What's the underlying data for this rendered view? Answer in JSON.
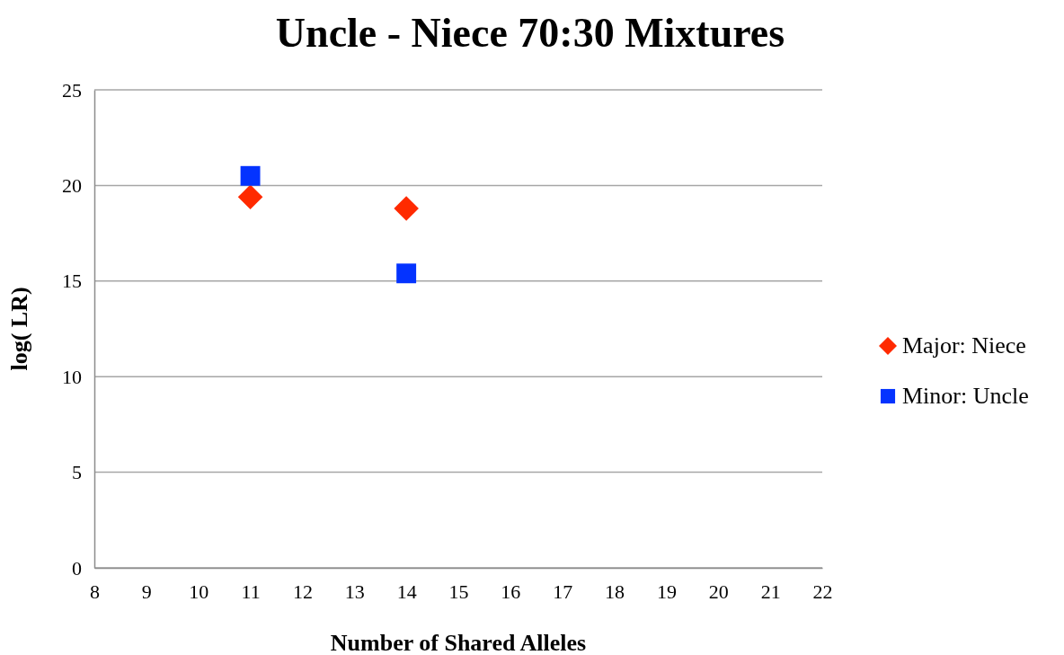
{
  "chart_data": {
    "type": "scatter",
    "title": "Uncle - Niece 70:30 Mixtures",
    "xlabel": "Number of Shared Alleles",
    "ylabel": "log( LR)",
    "x": [
      11,
      14
    ],
    "xlim": [
      8,
      22
    ],
    "xticks": [
      8,
      9,
      10,
      11,
      12,
      13,
      14,
      15,
      16,
      17,
      18,
      19,
      20,
      21,
      22
    ],
    "ylim": [
      0,
      25
    ],
    "yticks": [
      0,
      5,
      10,
      15,
      20,
      25
    ],
    "grid": "y",
    "legend": "right",
    "series": [
      {
        "name": "Major: Niece",
        "color": "#ff2a00",
        "marker": "diamond",
        "values": [
          19.4,
          18.8
        ]
      },
      {
        "name": "Minor: Uncle",
        "color": "#0433ff",
        "marker": "square",
        "values": [
          20.5,
          15.4
        ]
      }
    ]
  }
}
